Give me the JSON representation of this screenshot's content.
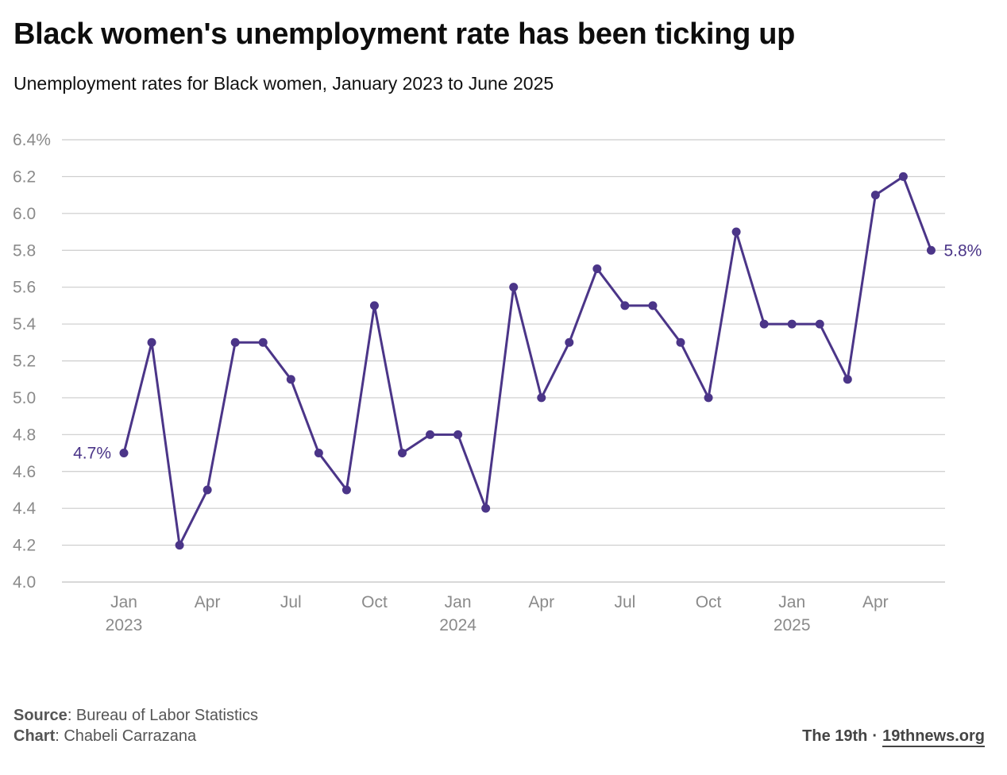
{
  "title": "Black women's unemployment rate has been ticking up",
  "subtitle": "Unemployment rates for Black women, January 2023 to June 2025",
  "footer": {
    "source_label": "Source",
    "source_text": ": Bureau of Labor Statistics",
    "chart_label": "Chart",
    "chart_text": ": Chabeli Carrazana",
    "brand": "The 19th",
    "separator": "·",
    "site": "19thnews.org"
  },
  "colors": {
    "line": "#4b3588",
    "grid": "#cccccc",
    "axis_text": "#8a8a8a"
  },
  "chart_data": {
    "type": "line",
    "title": "Black women's unemployment rate has been ticking up",
    "subtitle": "Unemployment rates for Black women, January 2023 to June 2025",
    "xlabel": "",
    "ylabel": "",
    "ylim": [
      4.0,
      6.4
    ],
    "y_ticks": [
      "4.0",
      "4.2",
      "4.4",
      "4.6",
      "4.8",
      "5.0",
      "5.2",
      "5.4",
      "5.6",
      "5.8",
      "6.0",
      "6.2",
      "6.4%"
    ],
    "y_tick_values": [
      4.0,
      4.2,
      4.4,
      4.6,
      4.8,
      5.0,
      5.2,
      5.4,
      5.6,
      5.8,
      6.0,
      6.2,
      6.4
    ],
    "grid": true,
    "x": [
      "2023-01",
      "2023-02",
      "2023-03",
      "2023-04",
      "2023-05",
      "2023-06",
      "2023-07",
      "2023-08",
      "2023-09",
      "2023-10",
      "2023-11",
      "2023-12",
      "2024-01",
      "2024-02",
      "2024-03",
      "2024-04",
      "2024-05",
      "2024-06",
      "2024-07",
      "2024-08",
      "2024-09",
      "2024-10",
      "2024-11",
      "2024-12",
      "2025-01",
      "2025-02",
      "2025-03",
      "2025-04",
      "2025-05",
      "2025-06"
    ],
    "x_ticks": [
      {
        "x": "2023-01",
        "label": "Jan",
        "year": "2023"
      },
      {
        "x": "2023-04",
        "label": "Apr",
        "year": ""
      },
      {
        "x": "2023-07",
        "label": "Jul",
        "year": ""
      },
      {
        "x": "2023-10",
        "label": "Oct",
        "year": ""
      },
      {
        "x": "2024-01",
        "label": "Jan",
        "year": "2024"
      },
      {
        "x": "2024-04",
        "label": "Apr",
        "year": ""
      },
      {
        "x": "2024-07",
        "label": "Jul",
        "year": ""
      },
      {
        "x": "2024-10",
        "label": "Oct",
        "year": ""
      },
      {
        "x": "2025-01",
        "label": "Jan",
        "year": "2025"
      },
      {
        "x": "2025-04",
        "label": "Apr",
        "year": ""
      }
    ],
    "series": [
      {
        "values": [
          4.7,
          5.3,
          4.2,
          4.5,
          5.3,
          5.3,
          5.1,
          4.7,
          4.5,
          5.5,
          4.7,
          4.8,
          4.8,
          4.4,
          5.6,
          5.0,
          5.3,
          5.7,
          5.5,
          5.5,
          5.3,
          5.0,
          5.9,
          5.4,
          5.4,
          5.4,
          5.1,
          6.1,
          6.2,
          5.8
        ]
      }
    ],
    "annotations": {
      "start_label": "4.7%",
      "end_label": "5.8%"
    }
  }
}
